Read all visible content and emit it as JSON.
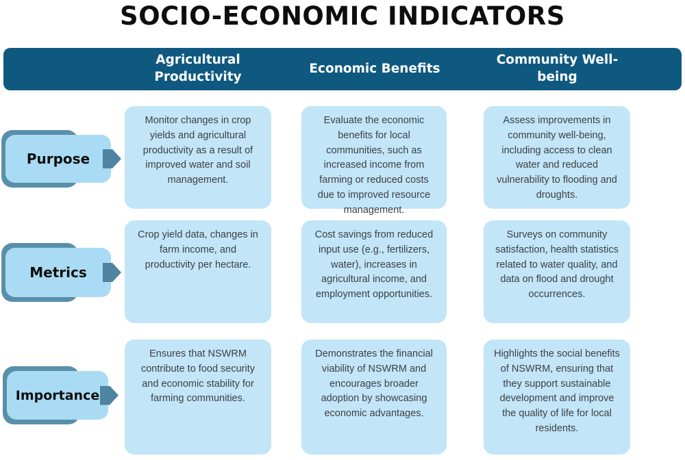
{
  "title": "SOCIO-ECONOMIC INDICATORS",
  "colors": {
    "header_bar": "#0f5980",
    "header_text": "#ffffff",
    "cell_background": "#c2e5f8",
    "tab_background": "#a9dcf4",
    "tab_shadow": "#5a8fa9",
    "arrow": "#4e83a1",
    "title_text": "#0e0e0e",
    "body_text": "#3d3f42"
  },
  "header": {
    "columns": [
      {
        "label": "Agricultural Productivity"
      },
      {
        "label": "Economic Benefits"
      },
      {
        "label": "Community Well-being"
      }
    ]
  },
  "rows": [
    {
      "label": "Purpose",
      "cells": [
        "Monitor changes in crop yields and agricultural productivity as a result of improved water and soil management.",
        "Evaluate the economic benefits for local communities, such as increased income from farming or reduced costs due to improved resource management.",
        "Assess improvements in community well-being, including access to clean water and reduced vulnerability to flooding and droughts."
      ]
    },
    {
      "label": "Metrics",
      "cells": [
        "Crop yield data, changes in farm income, and productivity per hectare.",
        "Cost savings from reduced input use (e.g., fertilizers, water), increases in agricultural income, and employment opportunities.",
        "Surveys on community satisfaction, health statistics related to water quality, and data on flood and drought occurrences."
      ]
    },
    {
      "label": "Importance",
      "cells": [
        "Ensures that NSWRM contribute to food security and economic stability for farming communities.",
        "Demonstrates the financial viability of NSWRM and encourages broader adoption by showcasing economic advantages.",
        "Highlights the social benefits of NSWRM, ensuring that they support sustainable development and improve the quality of life for local residents."
      ]
    }
  ]
}
